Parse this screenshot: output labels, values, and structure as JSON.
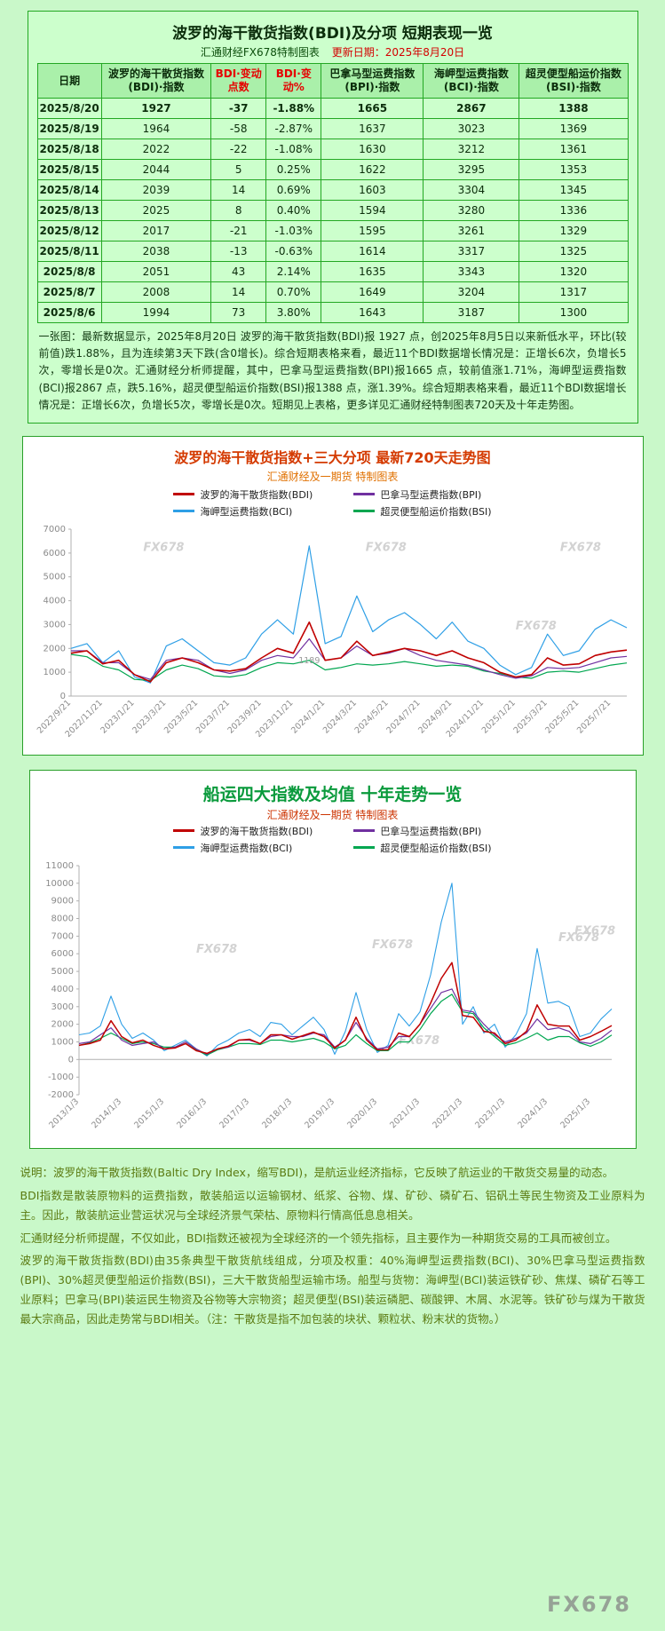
{
  "page": {
    "watermark": "FX678",
    "background": "#c9f8c9"
  },
  "table": {
    "title": "波罗的海干散货指数(BDI)及分项 短期表现一览",
    "source": "汇通财经FX678特制图表",
    "update": "更新日期：2025年8月20日",
    "columns": [
      {
        "label": "日期",
        "red": false
      },
      {
        "label": "波罗的海干散货指数(BDI)·指数",
        "red": false
      },
      {
        "label": "BDI·变动点数",
        "red": true
      },
      {
        "label": "BDI·变动%",
        "red": true
      },
      {
        "label": "巴拿马型运费指数(BPI)·指数",
        "red": false
      },
      {
        "label": "海岬型运费指数(BCI)·指数",
        "red": false
      },
      {
        "label": "超灵便型船运价指数(BSI)·指数",
        "red": false
      }
    ],
    "rows": [
      [
        "2025/8/20",
        "1927",
        "-37",
        "-1.88%",
        "1665",
        "2867",
        "1388"
      ],
      [
        "2025/8/19",
        "1964",
        "-58",
        "-2.87%",
        "1637",
        "3023",
        "1369"
      ],
      [
        "2025/8/18",
        "2022",
        "-22",
        "-1.08%",
        "1630",
        "3212",
        "1361"
      ],
      [
        "2025/8/15",
        "2044",
        "5",
        "0.25%",
        "1622",
        "3295",
        "1353"
      ],
      [
        "2025/8/14",
        "2039",
        "14",
        "0.69%",
        "1603",
        "3304",
        "1345"
      ],
      [
        "2025/8/13",
        "2025",
        "8",
        "0.40%",
        "1594",
        "3280",
        "1336"
      ],
      [
        "2025/8/12",
        "2017",
        "-21",
        "-1.03%",
        "1595",
        "3261",
        "1329"
      ],
      [
        "2025/8/11",
        "2038",
        "-13",
        "-0.63%",
        "1614",
        "3317",
        "1325"
      ],
      [
        "2025/8/8",
        "2051",
        "43",
        "2.14%",
        "1635",
        "3343",
        "1320"
      ],
      [
        "2025/8/7",
        "2008",
        "14",
        "0.70%",
        "1649",
        "3204",
        "1317"
      ],
      [
        "2025/8/6",
        "1994",
        "73",
        "3.80%",
        "1643",
        "3187",
        "1300"
      ]
    ],
    "note": "一张图：最新数据显示，2025年8月20日 波罗的海干散货指数(BDI)报 1927 点，创2025年8月5日以来新低水平，环比(较前值)跌1.88%，且为连续第3天下跌(含0增长)。综合短期表格来看，最近11个BDI数据增长情况是：正增长6次，负增长5次，零增长是0次。汇通财经分析师提醒，其中，巴拿马型运费指数(BPI)报1665 点，较前值涨1.71%，海岬型运费指数(BCI)报2867 点，跌5.16%，超灵便型船运价指数(BSI)报1388 点，涨1.39%。综合短期表格来看，最近11个BDI数据增长情况是：正增长6次，负增长5次，零增长是0次。短期见上表格，更多详见汇通财经特制图表720天及十年走势图。"
  },
  "chart_data": [
    {
      "type": "line",
      "title": "波罗的海干散货指数+三大分项 最新720天走势图",
      "subtitle": "汇通财经及一期货 特制图表",
      "ylim": [
        0,
        7000
      ],
      "ytick_step": 1000,
      "grid": false,
      "legend_position": "top",
      "label_step": 2,
      "xlabels": [
        "2022/9/21",
        "2022/11/21",
        "2023/1/21",
        "2023/3/21",
        "2023/5/21",
        "2023/7/21",
        "2023/9/21",
        "2023/11/21",
        "2024/1/21",
        "2024/3/21",
        "2024/5/21",
        "2024/7/21",
        "2024/9/21",
        "2024/11/21",
        "2025/1/21",
        "2025/3/21",
        "2025/5/21",
        "2025/7/21"
      ],
      "annotation": {
        "text": "1189",
        "x_index": 15,
        "value": 1189
      },
      "watermarks": [
        [
          0.13,
          0.13
        ],
        [
          0.53,
          0.13
        ],
        [
          0.88,
          0.13
        ],
        [
          0.8,
          0.6
        ]
      ],
      "draw_order": [
        2,
        3,
        1,
        0
      ],
      "series": [
        {
          "name": "波罗的海干散货指数(BDI)",
          "color": "#c00000",
          "width": 1.6,
          "values": [
            1800,
            1900,
            1350,
            1500,
            900,
            600,
            1400,
            1600,
            1400,
            1100,
            1050,
            1150,
            1600,
            2000,
            1800,
            3100,
            1500,
            1600,
            2300,
            1700,
            1850,
            2000,
            1900,
            1700,
            1900,
            1600,
            1400,
            1000,
            800,
            900,
            1600,
            1300,
            1350,
            1700,
            1850,
            1927
          ]
        },
        {
          "name": "巴拿马型运费指数(BPI)",
          "color": "#7030a0",
          "width": 1.2,
          "values": [
            1900,
            1900,
            1400,
            1400,
            900,
            700,
            1500,
            1600,
            1500,
            1100,
            950,
            1100,
            1500,
            1700,
            1600,
            2400,
            1500,
            1600,
            2100,
            1700,
            1800,
            2000,
            1700,
            1500,
            1400,
            1300,
            1100,
            900,
            750,
            850,
            1200,
            1150,
            1200,
            1400,
            1600,
            1665
          ]
        },
        {
          "name": "海岬型运费指数(BCI)",
          "color": "#2e9fe6",
          "width": 1.2,
          "values": [
            2000,
            2200,
            1400,
            1900,
            800,
            550,
            2100,
            2400,
            1900,
            1400,
            1300,
            1600,
            2600,
            3200,
            2600,
            6300,
            2200,
            2500,
            4200,
            2700,
            3200,
            3500,
            3000,
            2400,
            3100,
            2300,
            2000,
            1300,
            900,
            1200,
            2600,
            1700,
            1900,
            2800,
            3200,
            2867
          ]
        },
        {
          "name": "超灵便型船运价指数(BSI)",
          "color": "#00a650",
          "width": 1.2,
          "values": [
            1750,
            1650,
            1250,
            1100,
            700,
            650,
            1100,
            1300,
            1150,
            850,
            800,
            900,
            1200,
            1400,
            1350,
            1500,
            1100,
            1200,
            1350,
            1300,
            1350,
            1450,
            1350,
            1250,
            1300,
            1250,
            1050,
            950,
            800,
            750,
            1000,
            1050,
            1000,
            1150,
            1300,
            1388
          ]
        }
      ]
    },
    {
      "type": "line",
      "title": "船运四大指数及均值 十年走势一览",
      "subtitle": "汇通财经及一期货 特制图表",
      "ylim": [
        -2000,
        11000
      ],
      "ytick_step": 1000,
      "grid": false,
      "legend_position": "top",
      "label_step": 4,
      "xlabels": [
        "2013/1/3",
        "2014/1/3",
        "2015/1/3",
        "2016/1/3",
        "2017/1/3",
        "2018/1/3",
        "2019/1/3",
        "2020/1/3",
        "2021/1/3",
        "2022/1/3",
        "2023/1/3",
        "2024/1/3",
        "2025/1/3"
      ],
      "watermarks": [
        [
          0.22,
          0.38
        ],
        [
          0.55,
          0.36
        ],
        [
          0.9,
          0.33
        ],
        [
          0.6,
          0.78
        ],
        [
          0.93,
          0.3
        ]
      ],
      "draw_order": [
        2,
        3,
        1,
        0
      ],
      "series": [
        {
          "name": "波罗的海干散货指数(BDI)",
          "color": "#c00000",
          "width": 1.5,
          "values": [
            800,
            900,
            1100,
            2200,
            1300,
            950,
            1100,
            800,
            600,
            650,
            900,
            500,
            350,
            600,
            750,
            1100,
            1150,
            900,
            1400,
            1400,
            1150,
            1350,
            1550,
            1300,
            650,
            1100,
            2400,
            1100,
            550,
            550,
            1500,
            1300,
            2000,
            3200,
            4600,
            5500,
            2500,
            2400,
            1600,
            1500,
            900,
            1100,
            1600,
            3100,
            2000,
            1900,
            1900,
            1100,
            1300,
            1600,
            1927
          ]
        },
        {
          "name": "巴拿马型运费指数(BPI)",
          "color": "#7030a0",
          "width": 1.2,
          "values": [
            900,
            1000,
            1400,
            1800,
            1100,
            800,
            900,
            1000,
            600,
            700,
            1000,
            600,
            300,
            600,
            700,
            1100,
            1100,
            900,
            1300,
            1400,
            1300,
            1300,
            1500,
            1400,
            700,
            1100,
            2100,
            1200,
            600,
            700,
            1300,
            1300,
            2000,
            2900,
            3800,
            4000,
            2800,
            2700,
            2000,
            1400,
            1000,
            1200,
            1500,
            2300,
            1700,
            1800,
            1600,
            1000,
            900,
            1200,
            1665
          ]
        },
        {
          "name": "海岬型运费指数(BCI)",
          "color": "#2e9fe6",
          "width": 1.1,
          "values": [
            1400,
            1500,
            1900,
            3600,
            2000,
            1200,
            1500,
            1100,
            500,
            800,
            1100,
            600,
            200,
            800,
            1100,
            1500,
            1700,
            1300,
            2100,
            2000,
            1400,
            1900,
            2400,
            1700,
            300,
            1600,
            3800,
            1700,
            400,
            800,
            2600,
            1900,
            2700,
            4800,
            7800,
            10000,
            2000,
            3000,
            1500,
            2000,
            700,
            1400,
            2600,
            6300,
            3200,
            3300,
            3000,
            1300,
            1500,
            2300,
            2867
          ]
        },
        {
          "name": "超灵便型船运价指数(BSI)",
          "color": "#00a650",
          "width": 1.2,
          "values": [
            800,
            950,
            1200,
            1500,
            1200,
            900,
            1000,
            900,
            700,
            700,
            900,
            550,
            250,
            550,
            700,
            900,
            900,
            850,
            1100,
            1100,
            1000,
            1100,
            1200,
            1000,
            600,
            800,
            1400,
            900,
            500,
            500,
            1000,
            1000,
            1700,
            2600,
            3300,
            3700,
            2700,
            2600,
            1800,
            1300,
            800,
            950,
            1200,
            1500,
            1100,
            1300,
            1300,
            950,
            750,
            1000,
            1388
          ]
        }
      ]
    }
  ],
  "footer": {
    "watermark": "FX678",
    "paragraphs": [
      "说明：波罗的海干散货指数(Baltic Dry Index，缩写BDI)，是航运业经济指标，它反映了航运业的干散货交易量的动态。",
      "BDI指数是散装原物料的运费指数，散装船运以运输钢材、纸浆、谷物、煤、矿砂、磷矿石、铝矾土等民生物资及工业原料为主。因此，散装航运业营运状况与全球经济景气荣枯、原物料行情高低息息相关。",
      "汇通财经分析师提醒，不仅如此，BDI指数还被视为全球经济的一个领先指标，且主要作为一种期货交易的工具而被创立。",
      "波罗的海干散货指数(BDI)由35条典型干散货航线组成，分项及权重：40%海岬型运费指数(BCI)、30%巴拿马型运费指数(BPI)、30%超灵便型船运价指数(BSI)，三大干散货船型运输市场。船型与货物：海岬型(BCI)装运铁矿砂、焦煤、磷矿石等工业原料；巴拿马(BPI)装运民生物资及谷物等大宗物资；超灵便型(BSI)装运磷肥、碳酸钾、木屑、水泥等。铁矿砂与煤为干散货最大宗商品，因此走势常与BDI相关。（注：干散货是指不加包装的块状、颗粒状、粉末状的货物。）"
    ]
  }
}
